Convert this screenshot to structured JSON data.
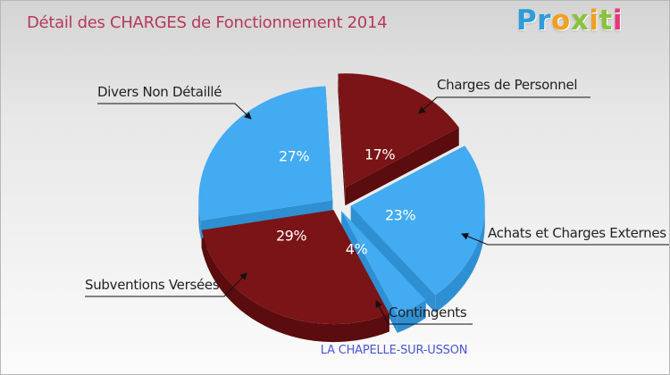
{
  "header": {
    "title": "Détail des CHARGES de Fonctionnement 2014",
    "logo_letters": [
      "P",
      "r",
      "o",
      "x",
      "i",
      "t",
      "i"
    ],
    "logo_colors": [
      "#2e9cd8",
      "#2e9cd8",
      "#f0a020",
      "#8ac23c",
      "#f0a020",
      "#8ac23c",
      "#e2397a"
    ]
  },
  "footer": {
    "commune": "LA CHAPELLE-SUR-USSON"
  },
  "colors": {
    "blue": "#42abf1",
    "blue_side": "#2f8fd3",
    "red": "#7a1416",
    "red_side": "#5a0c0e"
  },
  "chart_data": {
    "type": "pie",
    "title": "Détail des CHARGES de Fonctionnement 2014",
    "slices": [
      {
        "label": "Charges de Personnel",
        "value": 17,
        "pct_label": "17%",
        "color": "#7a1416"
      },
      {
        "label": "Achats et Charges Externes",
        "value": 23,
        "pct_label": "23%",
        "color": "#42abf1"
      },
      {
        "label": "Contingents",
        "value": 4,
        "pct_label": "4%",
        "color": "#42abf1"
      },
      {
        "label": "Subventions Versées",
        "value": 29,
        "pct_label": "29%",
        "color": "#7a1416"
      },
      {
        "label": "Divers Non Détaillé",
        "value": 27,
        "pct_label": "27%",
        "color": "#42abf1"
      }
    ]
  }
}
